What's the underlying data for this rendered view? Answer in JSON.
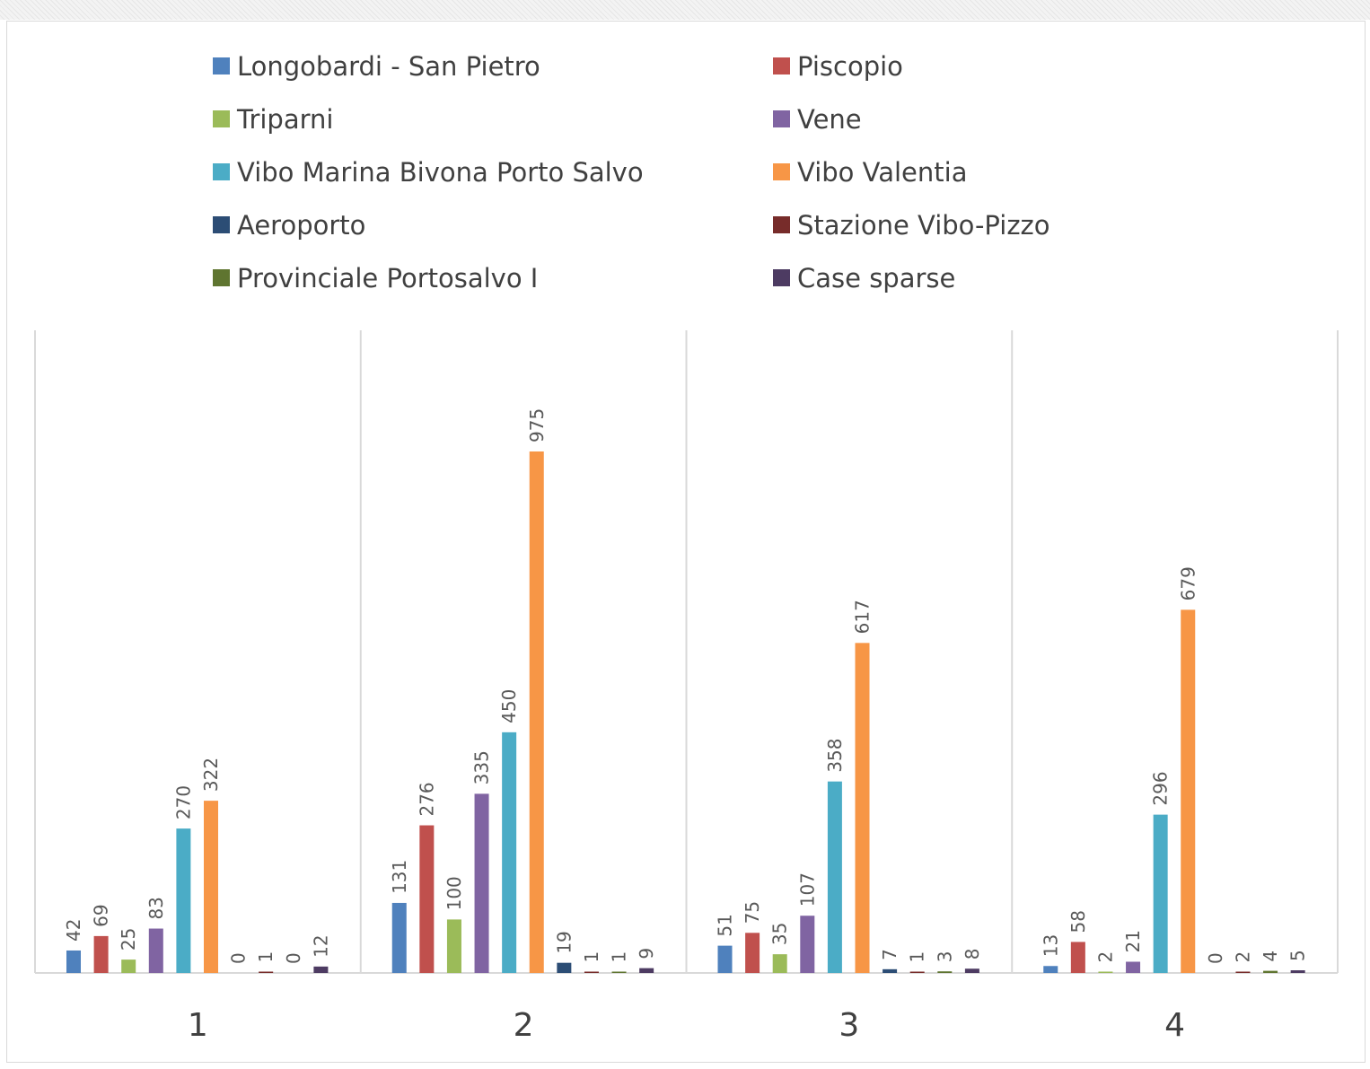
{
  "chart_data": {
    "type": "bar",
    "categories": [
      "1",
      "2",
      "3",
      "4"
    ],
    "ylim": [
      0,
      1000
    ],
    "grid": false,
    "legend_position": "top",
    "series": [
      {
        "name": "Longobardi - San Pietro",
        "color": "#4F81BD",
        "values": [
          42,
          131,
          51,
          13
        ]
      },
      {
        "name": "Piscopio",
        "color": "#C0504D",
        "values": [
          69,
          276,
          75,
          58
        ]
      },
      {
        "name": "Triparni",
        "color": "#9BBB59",
        "values": [
          25,
          100,
          35,
          2
        ]
      },
      {
        "name": "Vene",
        "color": "#8064A2",
        "values": [
          83,
          335,
          107,
          21
        ]
      },
      {
        "name": "Vibo Marina Bivona Porto Salvo",
        "color": "#4BACC6",
        "values": [
          270,
          450,
          358,
          296
        ]
      },
      {
        "name": "Vibo Valentia",
        "color": "#F79646",
        "values": [
          322,
          975,
          617,
          679
        ]
      },
      {
        "name": "Aeroporto",
        "color": "#2C4D75",
        "values": [
          0,
          19,
          7,
          0
        ]
      },
      {
        "name": "Stazione Vibo-Pizzo",
        "color": "#772C2A",
        "values": [
          1,
          1,
          1,
          2
        ]
      },
      {
        "name": "Provinciale Portosalvo I",
        "color": "#5F7530",
        "values": [
          0,
          1,
          3,
          4
        ]
      },
      {
        "name": "Case sparse",
        "color": "#4D3B62",
        "values": [
          12,
          9,
          8,
          5
        ]
      }
    ]
  }
}
